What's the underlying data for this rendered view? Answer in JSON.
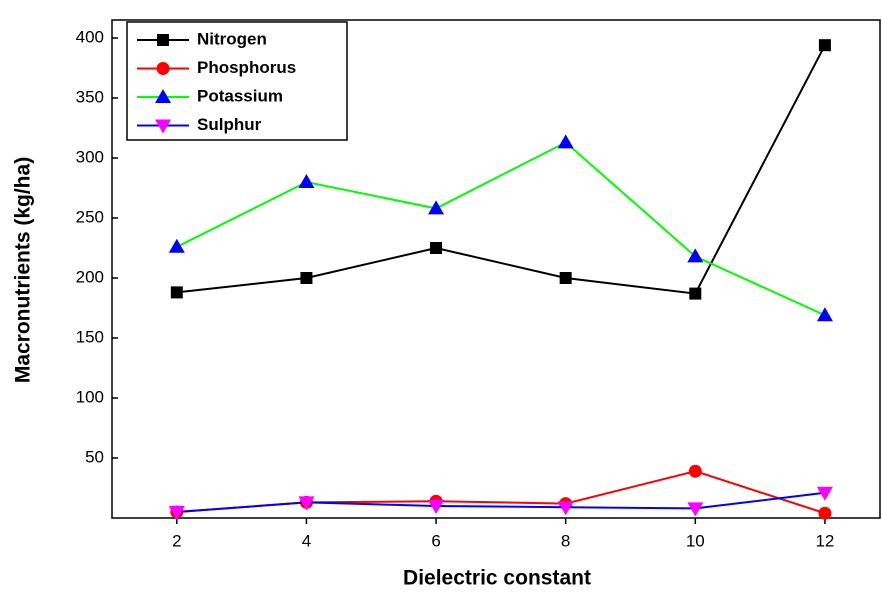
{
  "chart_data": {
    "type": "line",
    "x_label": "Dielectric constant",
    "y_label": "Macronutrients (kg/ha)",
    "x": [
      2,
      4,
      6,
      8,
      10,
      12
    ],
    "series": [
      {
        "name": "Nitrogen",
        "color": "#000000",
        "marker": "square",
        "marker_color": "#000000",
        "values": [
          188,
          200,
          225,
          200,
          187,
          394
        ]
      },
      {
        "name": "Phosphorus",
        "color": "#ff0000",
        "marker": "circle",
        "marker_color": "#ff0000",
        "values": [
          5,
          13,
          14,
          12,
          39,
          4
        ]
      },
      {
        "name": "Potassium",
        "color": "#00ff00",
        "marker": "triangle-up",
        "marker_color": "#0000ff",
        "values": [
          226,
          280,
          258,
          313,
          218,
          169
        ]
      },
      {
        "name": "Sulphur",
        "color": "#0000ff",
        "marker": "triangle-down",
        "marker_color": "#ff00ff",
        "values": [
          5,
          13,
          10,
          9,
          8,
          21
        ]
      }
    ],
    "xlim": [
      1,
      12.85
    ],
    "ylim": [
      0,
      415
    ],
    "xticks": [
      2,
      4,
      6,
      8,
      10,
      12
    ],
    "yticks": [
      50,
      100,
      150,
      200,
      250,
      300,
      350,
      400
    ],
    "grid": false,
    "legend": "top-left"
  }
}
